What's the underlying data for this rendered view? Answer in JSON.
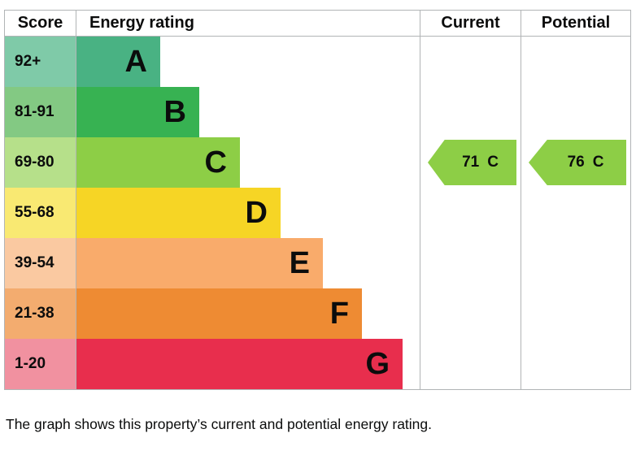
{
  "header": {
    "score": "Score",
    "energy_rating": "Energy rating",
    "current": "Current",
    "potential": "Potential"
  },
  "bands": [
    {
      "score": "92+",
      "letter": "A",
      "color": "#49b283",
      "tint": "#7fcaa8"
    },
    {
      "score": "81-91",
      "letter": "B",
      "color": "#37b252",
      "tint": "#83c983"
    },
    {
      "score": "69-80",
      "letter": "C",
      "color": "#8dce46",
      "tint": "#b6e08a"
    },
    {
      "score": "55-68",
      "letter": "D",
      "color": "#f6d525",
      "tint": "#f9e972"
    },
    {
      "score": "39-54",
      "letter": "E",
      "color": "#f9ab6b",
      "tint": "#fac9a1"
    },
    {
      "score": "21-38",
      "letter": "F",
      "color": "#ee8b33",
      "tint": "#f3ac6f"
    },
    {
      "score": "1-20",
      "letter": "G",
      "color": "#e82e4d",
      "tint": "#f191a0"
    }
  ],
  "current": {
    "value": "71",
    "letter": "C"
  },
  "potential": {
    "value": "76",
    "letter": "C"
  },
  "arrow_color": "#8dce46",
  "caption": "The graph shows this property’s current and potential energy rating.",
  "chart_data": {
    "type": "bar",
    "title": "Energy rating",
    "categories": [
      "A",
      "B",
      "C",
      "D",
      "E",
      "F",
      "G"
    ],
    "score_ranges": [
      "92+",
      "81-91",
      "69-80",
      "55-68",
      "39-54",
      "21-38",
      "1-20"
    ],
    "band_colors": [
      "#49b283",
      "#37b252",
      "#8dce46",
      "#f6d525",
      "#f9ab6b",
      "#ee8b33",
      "#e82e4d"
    ],
    "bar_relative_lengths": [
      1,
      1.5,
      2,
      2.5,
      3,
      3.5,
      4
    ],
    "markers": [
      {
        "name": "Current",
        "score": 71,
        "band": "C"
      },
      {
        "name": "Potential",
        "score": 76,
        "band": "C"
      }
    ],
    "legend_position": "none",
    "grid": false
  }
}
